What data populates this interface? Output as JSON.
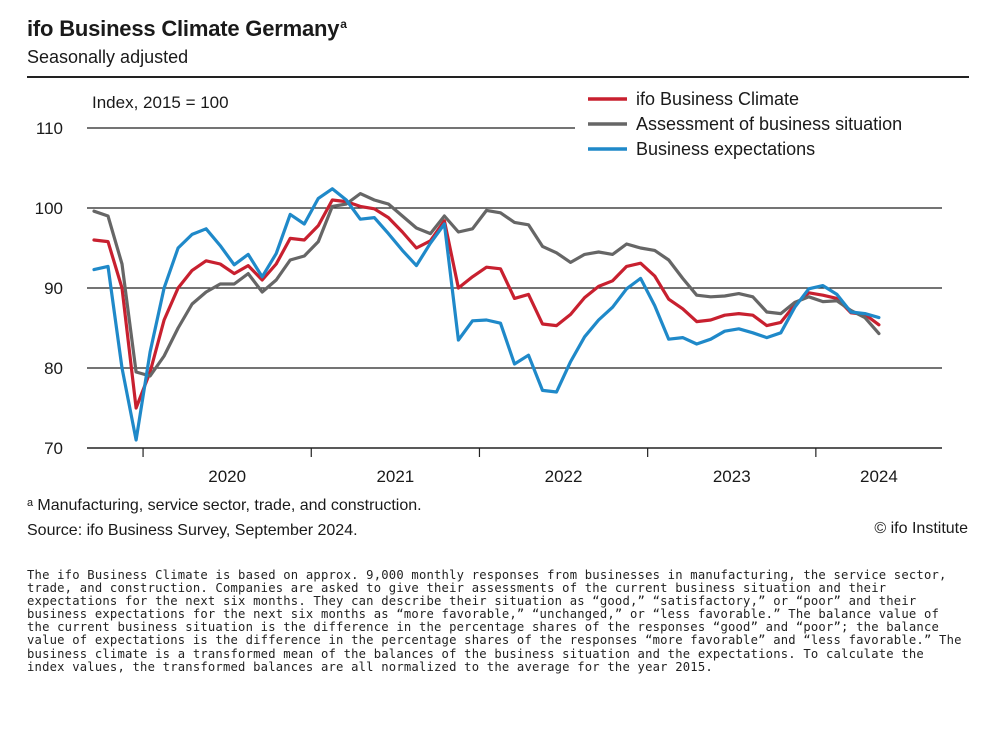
{
  "header": {
    "title": "ifo Business Climate Germany",
    "title_note": "a",
    "subtitle": "Seasonally adjusted"
  },
  "footer": {
    "footnote": "ᵃ Manufacturing, service sector, trade, and construction.",
    "source": "Source: ifo Business Survey, September 2024.",
    "credit": "© ifo Institute",
    "description": "The ifo Business Climate is based on approx. 9,000 monthly responses from businesses in manufacturing, the service sector, trade, and construction. Companies are asked to give their assessments of the current business situation and their expectations for the next six months. They can describe their situation as “good,” “satisfactory,” or “poor” and their business expectations for the next six months as “more favorable,” “unchanged,” or “less favorable.” The balance value of the current business situation is the difference in the percentage shares of the responses “good” and “poor”; the balance value of expectations is the difference in the percentage shares of the responses “more favorable” and “less favorable.” The business climate is a transformed mean of the balances of the business situation and the expectations. To calculate the index values, the transformed balances are all normalized to the average for the year 2015."
  },
  "chart_data": {
    "type": "line",
    "ylabel": "Index, 2015 = 100",
    "ylim": [
      70,
      110
    ],
    "yticks": [
      70,
      80,
      90,
      100,
      110
    ],
    "x_start": "2019-09",
    "x_end": "2024-09",
    "year_labels": [
      "2020",
      "2021",
      "2022",
      "2023",
      "2024"
    ],
    "grid": "horizontal",
    "legend_position": "top-right",
    "series": [
      {
        "name": "ifo Business Climate",
        "color": "#c8202f",
        "values": [
          96.0,
          95.8,
          90.0,
          75.0,
          79.5,
          86.0,
          90.0,
          92.2,
          93.4,
          93.0,
          91.8,
          92.8,
          91.0,
          93.0,
          96.2,
          96.0,
          97.8,
          101.0,
          100.8,
          100.2,
          99.9,
          98.8,
          97.0,
          95.0,
          95.9,
          98.4,
          90.0,
          91.4,
          92.6,
          92.4,
          88.7,
          89.2,
          85.5,
          85.3,
          86.7,
          88.8,
          90.2,
          90.9,
          92.7,
          93.1,
          91.5,
          88.6,
          87.4,
          85.8,
          86.0,
          86.6,
          86.8,
          86.6,
          85.3,
          85.7,
          87.9,
          89.4,
          89.1,
          88.7,
          86.9,
          86.7,
          85.4
        ]
      },
      {
        "name": "Assessment of business situation",
        "color": "#666666",
        "values": [
          99.6,
          99.0,
          93.0,
          79.5,
          79.0,
          81.5,
          85.0,
          88.0,
          89.5,
          90.5,
          90.5,
          91.8,
          89.5,
          91.0,
          93.5,
          94.0,
          95.8,
          100.2,
          100.5,
          101.8,
          101.0,
          100.5,
          99.0,
          97.5,
          96.8,
          99.0,
          97.0,
          97.4,
          99.7,
          99.4,
          98.2,
          97.9,
          95.2,
          94.4,
          93.2,
          94.2,
          94.5,
          94.2,
          95.5,
          95.0,
          94.7,
          93.5,
          91.2,
          89.1,
          88.9,
          89.0,
          89.3,
          88.9,
          87.0,
          86.8,
          88.2,
          88.9,
          88.3,
          88.4,
          87.2,
          86.3,
          84.3
        ]
      },
      {
        "name": "Business expectations",
        "color": "#1f89c9",
        "values": [
          92.3,
          92.7,
          80.0,
          71.0,
          82.0,
          90.0,
          95.0,
          96.7,
          97.4,
          95.3,
          92.9,
          94.2,
          91.4,
          94.3,
          99.2,
          98.0,
          101.2,
          102.4,
          101.0,
          98.6,
          98.8,
          96.8,
          94.7,
          92.8,
          95.6,
          98.0,
          83.5,
          85.9,
          86.0,
          85.6,
          80.5,
          81.6,
          77.2,
          77.0,
          80.8,
          83.9,
          86.0,
          87.6,
          89.9,
          91.2,
          87.8,
          83.6,
          83.8,
          83.0,
          83.6,
          84.6,
          84.9,
          84.4,
          83.8,
          84.4,
          87.6,
          89.9,
          90.3,
          89.2,
          87.0,
          86.8,
          86.3
        ]
      }
    ]
  }
}
